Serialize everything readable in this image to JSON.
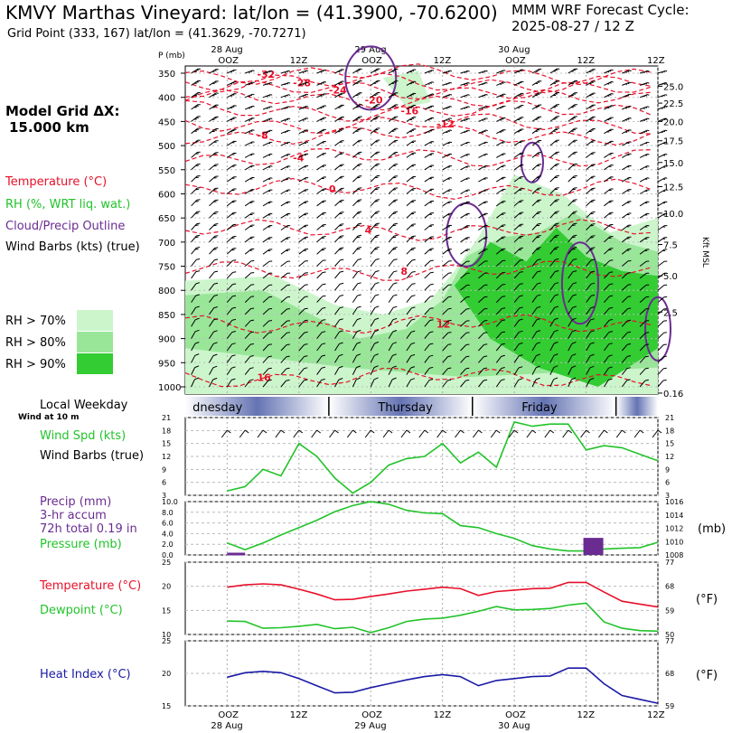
{
  "header": {
    "title": "KMVY Marthas Vineyard:  lat/lon = (41.3900, -70.6200)",
    "subtitle": "Grid Point (333, 167) lat/lon = (41.3629, -70.7271)",
    "cycle_line1": "MMM WRF Forecast Cycle:",
    "cycle_line2": "2025-08-27 / 12  Z"
  },
  "legend": {
    "grid_dx_line1": "Model Grid ΔX:",
    "grid_dx_line2": "15.000 km",
    "temperature": "Temperature (°C)",
    "rh": "RH (%, WRT liq. wat.)",
    "cloud": "Cloud/Precip Outline",
    "wind": "Wind Barbs (kts) (true)",
    "rh70": "RH > 70%",
    "rh80": "RH > 80%",
    "rh90": "RH > 90%",
    "local_weekday": "Local Weekday",
    "wind_at": "Wind at 10 m",
    "wind_spd": "Wind Spd (kts)",
    "wind_barbs": "Wind Barbs (true)",
    "precip1": "Precip (mm)",
    "precip2": "3-hr accum",
    "precip3": "72h total 0.19 in",
    "pressure": "Pressure (mb)",
    "temp2": "Temperature (°C)",
    "dewpoint": "Dewpoint (°C)",
    "heat_index": "Heat Index (°C)"
  },
  "colors": {
    "temperature": "#e8102a",
    "rh": "#22c32a",
    "cloud": "#6a2c91",
    "wind": "#000000",
    "heat_index": "#1a1aa6",
    "rh70": "#ccf5cc",
    "rh80": "#99e699",
    "rh90": "#33cc33",
    "weekday_band": "#6473b3"
  },
  "chart_data": [
    {
      "type": "contour",
      "name": "cross_section",
      "y_axis_label": "P (mb)",
      "y_ticks": [
        350,
        400,
        450,
        500,
        550,
        600,
        650,
        700,
        750,
        800,
        850,
        900,
        950,
        1000
      ],
      "right_axis_label": "Kft MSL",
      "right_ticks": [
        {
          "label": "25.0",
          "p": 377
        },
        {
          "label": "22.5",
          "p": 412
        },
        {
          "label": "20.0",
          "p": 450
        },
        {
          "label": "17.5",
          "p": 490
        },
        {
          "label": "15.0",
          "p": 535
        },
        {
          "label": "12.5",
          "p": 585
        },
        {
          "label": "10.0",
          "p": 640
        },
        {
          "label": "7.5",
          "p": 705
        },
        {
          "label": "5.0",
          "p": 770
        },
        {
          "label": "2.5",
          "p": 845
        },
        {
          "label": "0.16",
          "p": 1013
        }
      ],
      "x_labels_top": [
        "OOZ",
        "12Z",
        "OOZ",
        "12Z",
        "OOZ",
        "12Z"
      ],
      "dates": [
        "28 Aug",
        "29 Aug",
        "30 Aug"
      ],
      "temperature_contours": [
        {
          "label": "-32",
          "p": 352
        },
        {
          "label": "-28",
          "p": 370
        },
        {
          "label": "-24",
          "p": 385
        },
        {
          "label": "-20",
          "p": 405
        },
        {
          "label": "-16",
          "p": 428
        },
        {
          "label": "-12",
          "p": 455
        },
        {
          "label": "-8",
          "p": 478
        },
        {
          "label": "-4",
          "p": 525
        },
        {
          "label": "0",
          "p": 590
        },
        {
          "label": "4",
          "p": 675
        },
        {
          "label": "8",
          "p": 760
        },
        {
          "label": "12",
          "p": 870
        },
        {
          "label": "16",
          "p": 980
        }
      ]
    },
    {
      "type": "line",
      "name": "wind_speed",
      "ylabel": "Wind Spd (kts)",
      "y_ticks": [
        3,
        6,
        9,
        12,
        15,
        18,
        21
      ],
      "ylim": [
        3,
        21
      ],
      "x": [
        0,
        3,
        6,
        9,
        12,
        15,
        18,
        21,
        24,
        27,
        30,
        33,
        36,
        39,
        42,
        45,
        48,
        51,
        54,
        57,
        60,
        63,
        66,
        69,
        72
      ],
      "values": [
        4,
        5,
        9,
        7.5,
        15,
        12,
        7,
        3.5,
        6,
        10,
        11.5,
        12,
        15,
        10.5,
        13,
        9.5,
        20,
        19,
        19.5,
        19.5,
        13.5,
        14.5,
        14,
        12.5,
        11
      ]
    },
    {
      "type": "line",
      "name": "pressure_precip",
      "ylabel_left": "Precip (mm)",
      "ylabel_right": "(mb)",
      "left_ticks": [
        0.0,
        2.0,
        4.0,
        6.0,
        8.0,
        10.0
      ],
      "right_ticks": [
        1008,
        1010,
        1012,
        1014,
        1016
      ],
      "pressure_ylim": [
        1008,
        1016
      ],
      "x": [
        0,
        3,
        6,
        9,
        12,
        15,
        18,
        21,
        24,
        27,
        30,
        33,
        36,
        39,
        42,
        45,
        48,
        51,
        54,
        57,
        60,
        63,
        66,
        69,
        72
      ],
      "pressure": [
        1009.8,
        1008.8,
        1009.8,
        1011,
        1012.1,
        1013.2,
        1014.5,
        1015.4,
        1016,
        1015.6,
        1014.7,
        1014.3,
        1014.2,
        1012.4,
        1012.1,
        1011.2,
        1010.5,
        1009.4,
        1008.9,
        1008.6,
        1008.6,
        1008.9,
        1009,
        1009.1,
        1009.9
      ],
      "precip_bars": [
        {
          "x": 60,
          "value": 3.2
        }
      ],
      "precip_baseline": [
        {
          "x0": 0,
          "x1": 3,
          "value": 0.2
        }
      ]
    },
    {
      "type": "line",
      "name": "temperature_dewpoint",
      "y_ticks_left": [
        10,
        15,
        20,
        25
      ],
      "y_ticks_right": [
        50,
        59,
        68,
        77
      ],
      "ylim": [
        10,
        25
      ],
      "right_label": "(°F)",
      "x": [
        0,
        3,
        6,
        9,
        12,
        15,
        18,
        21,
        24,
        27,
        30,
        33,
        36,
        39,
        42,
        45,
        48,
        51,
        54,
        57,
        60,
        63,
        66,
        69,
        72
      ],
      "series": [
        {
          "name": "Temperature",
          "values": [
            19.8,
            20.3,
            20.5,
            20.3,
            19.4,
            18.4,
            17.2,
            17.3,
            17.9,
            18.4,
            19,
            19.4,
            19.8,
            19.5,
            18.1,
            18.9,
            19.2,
            19.5,
            19.6,
            20.8,
            20.8,
            18.8,
            16.9,
            16.3,
            15.7
          ]
        },
        {
          "name": "Dewpoint",
          "values": [
            12.8,
            12.7,
            11.3,
            11.4,
            11.7,
            12.1,
            11.2,
            11.5,
            10.4,
            11.4,
            12.7,
            13.2,
            13.4,
            14,
            14.8,
            15.8,
            15.1,
            15.2,
            15.4,
            16.1,
            16.5,
            12.6,
            11.3,
            10.8,
            10.7
          ]
        }
      ]
    },
    {
      "type": "line",
      "name": "heat_index",
      "y_ticks_left": [
        15,
        20,
        25
      ],
      "y_ticks_right": [
        59,
        68,
        77
      ],
      "ylim": [
        15,
        25
      ],
      "right_label": "(°F)",
      "x_labels_bottom": [
        "OOZ",
        "12Z",
        "OOZ",
        "12Z",
        "OOZ",
        "12Z"
      ],
      "dates": [
        "28 Aug",
        "29 Aug",
        "30 Aug"
      ],
      "x": [
        0,
        3,
        6,
        9,
        12,
        15,
        18,
        21,
        24,
        27,
        30,
        33,
        36,
        39,
        42,
        45,
        48,
        51,
        54,
        57,
        60,
        63,
        66,
        69,
        72
      ],
      "values": [
        19.4,
        20.1,
        20.3,
        20.1,
        19.2,
        18.1,
        17,
        17.1,
        17.8,
        18.4,
        19,
        19.5,
        19.8,
        19.5,
        18.1,
        18.9,
        19.2,
        19.5,
        19.6,
        20.8,
        20.8,
        18.4,
        16.6,
        16,
        15.4
      ]
    }
  ],
  "weekday": {
    "days": [
      "dnesday",
      "Thursday",
      "Friday"
    ]
  }
}
